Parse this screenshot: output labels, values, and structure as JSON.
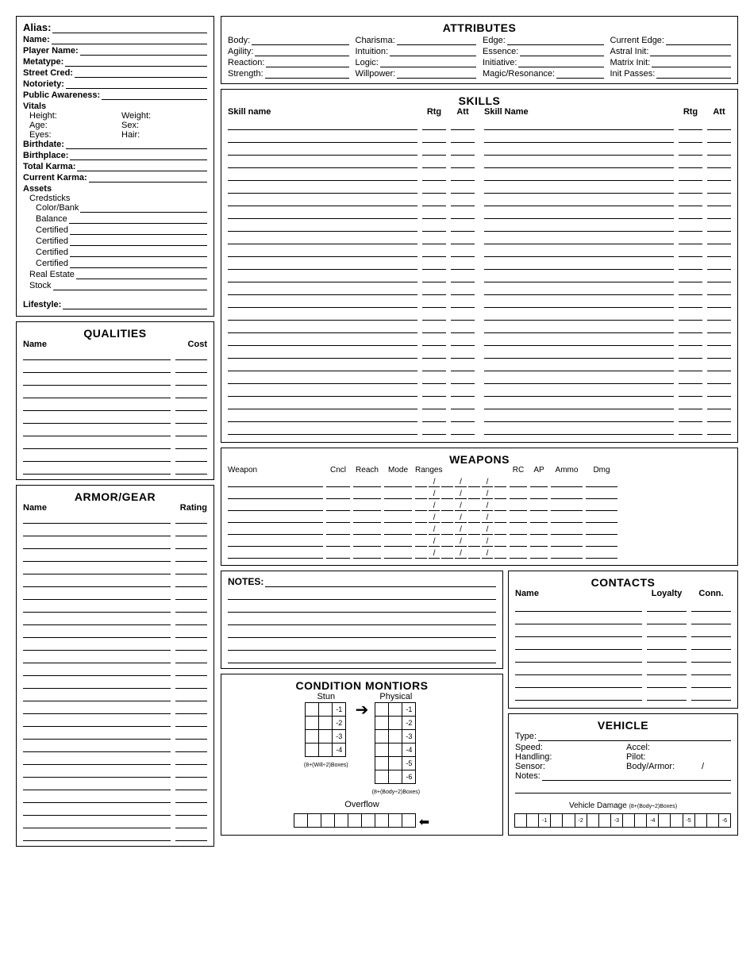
{
  "identity": {
    "alias": "Alias:",
    "name": "Name:",
    "player": "Player Name:",
    "metatype": "Metatype:",
    "streetcred": "Street Cred:",
    "notoriety": "Notoriety:",
    "publicaware": "Public Awareness:",
    "vitals": "Vitals",
    "height": "Height:",
    "weight": "Weight:",
    "age": "Age:",
    "sex": "Sex:",
    "eyes": "Eyes:",
    "hair": "Hair:",
    "birthdate": "Birthdate:",
    "birthplace": "Birthplace:",
    "totalkarma": "Total Karma:",
    "currkarma": "Current Karma:",
    "assets": "Assets",
    "credsticks": "Credsticks",
    "colorbank": "Color/Bank",
    "balance": "Balance",
    "certified": "Certified",
    "realestate": "Real Estate",
    "stock": "Stock",
    "lifestyle": "Lifestyle:"
  },
  "qualities": {
    "title": "QUALITIES",
    "name": "Name",
    "cost": "Cost"
  },
  "armor": {
    "title": "ARMOR/GEAR",
    "name": "Name",
    "rating": "Rating"
  },
  "attributes": {
    "title": "ATTRIBUTES",
    "body": "Body:",
    "agility": "Agility:",
    "reaction": "Reaction:",
    "strength": "Strength:",
    "charisma": "Charisma:",
    "intuition": "Intuition:",
    "logic": "Logic:",
    "willpower": "Willpower:",
    "edge": "Edge:",
    "essence": "Essence:",
    "initiative": "Initiative:",
    "magic": "Magic/Resonance:",
    "curredge": "Current Edge:",
    "astral": "Astral Init:",
    "matrix": "Matrix Init:",
    "passes": "Init Passes:"
  },
  "skills": {
    "title": "SKILLS",
    "name1": "Skill name",
    "name2": "Skill Name",
    "rtg": "Rtg",
    "att": "Att",
    "rows": 25
  },
  "weapons": {
    "title": "WEAPONS",
    "weapon": "Weapon",
    "cncl": "Cncl",
    "reach": "Reach",
    "mode": "Mode",
    "ranges": "Ranges",
    "rc": "RC",
    "ap": "AP",
    "ammo": "Ammo",
    "dmg": "Dmg",
    "rows": 7
  },
  "notes": {
    "title": "NOTES:",
    "rows": 6
  },
  "condition": {
    "title": "CONDITION MONTIORS",
    "stun": "Stun",
    "physical": "Physical",
    "overflow": "Overflow",
    "stun_rows": [
      [
        "",
        "",
        "-1"
      ],
      [
        "",
        "",
        "-2"
      ],
      [
        "",
        "",
        "-3"
      ],
      [
        "",
        "",
        "-4"
      ]
    ],
    "phys_rows": [
      [
        "",
        "",
        "-1"
      ],
      [
        "",
        "",
        "-2"
      ],
      [
        "",
        "",
        "-3"
      ],
      [
        "",
        "",
        "-4"
      ],
      [
        "",
        "",
        "-5"
      ],
      [
        "",
        "",
        "-6"
      ]
    ],
    "stun_note": "(8+(Will÷2)Boxes)",
    "phys_note": "(8+(Body÷2)Boxes)",
    "overflow_cells": 9
  },
  "contacts": {
    "title": "CONTACTS",
    "name": "Name",
    "loyalty": "Loyalty",
    "conn": "Conn.",
    "rows": 8
  },
  "vehicle": {
    "title": "VEHICLE",
    "type": "Type:",
    "speed": "Speed:",
    "accel": "Accel:",
    "handling": "Handling:",
    "pilot": "Pilot:",
    "sensor": "Sensor:",
    "body": "Body/Armor:",
    "notes": "Notes:",
    "damage": "Vehicle Damage",
    "damage_note": "(8+(Body÷2)Boxes)",
    "cells": [
      "",
      "",
      "-1",
      "",
      "",
      "-2",
      "",
      "",
      "-3",
      "",
      "",
      "-4",
      "",
      "",
      "-5",
      "",
      "",
      "-6"
    ]
  }
}
